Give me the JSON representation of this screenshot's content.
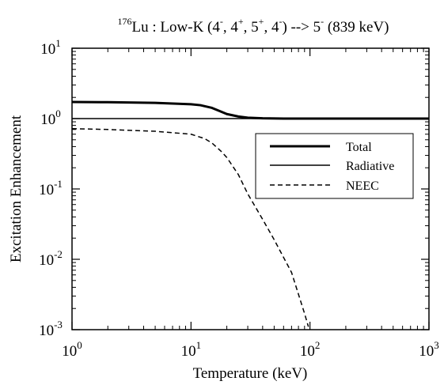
{
  "chart_data": {
    "type": "line",
    "title": {
      "sup": "176",
      "main": "Lu : Low-K (4",
      "parts": [
        {
          "sup": "-",
          "after": ", 4"
        },
        {
          "sup": "+",
          "after": ", 5"
        },
        {
          "sup": "+",
          "after": ", 4"
        },
        {
          "sup": "-",
          "after": ") --> 5"
        },
        {
          "sup": "-",
          "after": " (839 keV)"
        }
      ]
    },
    "xlabel": "Temperature (keV)",
    "ylabel": "Excitation Enhancement",
    "x_scale": "log",
    "y_scale": "log",
    "xlim": [
      1,
      1000
    ],
    "ylim": [
      0.001,
      10
    ],
    "x_ticks": [
      {
        "value": 1,
        "base": "10",
        "exp": "0"
      },
      {
        "value": 10,
        "base": "10",
        "exp": "1"
      },
      {
        "value": 100,
        "base": "10",
        "exp": "2"
      },
      {
        "value": 1000,
        "base": "10",
        "exp": "3"
      }
    ],
    "y_ticks": [
      {
        "value": 0.001,
        "base": "10",
        "exp": "-3"
      },
      {
        "value": 0.01,
        "base": "10",
        "exp": "-2"
      },
      {
        "value": 0.1,
        "base": "10",
        "exp": "-1"
      },
      {
        "value": 1,
        "base": "10",
        "exp": "0"
      },
      {
        "value": 10,
        "base": "10",
        "exp": "1"
      }
    ],
    "grid": false,
    "legend_position": "right",
    "series": [
      {
        "name": "Total",
        "style": "thick-solid",
        "color": "#000000",
        "points": [
          [
            1,
            1.72
          ],
          [
            2,
            1.71
          ],
          [
            5,
            1.67
          ],
          [
            10,
            1.6
          ],
          [
            12,
            1.55
          ],
          [
            15,
            1.42
          ],
          [
            18,
            1.25
          ],
          [
            20,
            1.16
          ],
          [
            25,
            1.07
          ],
          [
            30,
            1.03
          ],
          [
            40,
            1.01
          ],
          [
            60,
            1.0
          ],
          [
            100,
            1.0
          ],
          [
            1000,
            1.0
          ]
        ]
      },
      {
        "name": "Radiative",
        "style": "solid",
        "color": "#000000",
        "points": [
          [
            1,
            1.0
          ],
          [
            1000,
            1.0
          ]
        ]
      },
      {
        "name": "NEEC",
        "style": "dashed",
        "color": "#000000",
        "points": [
          [
            1,
            0.72
          ],
          [
            2,
            0.7
          ],
          [
            5,
            0.66
          ],
          [
            10,
            0.6
          ],
          [
            13,
            0.52
          ],
          [
            15,
            0.45
          ],
          [
            18,
            0.34
          ],
          [
            20,
            0.28
          ],
          [
            25,
            0.16
          ],
          [
            30,
            0.085
          ],
          [
            40,
            0.037
          ],
          [
            50,
            0.019
          ],
          [
            70,
            0.0065
          ],
          [
            90,
            0.0017
          ],
          [
            97,
            0.0011
          ]
        ]
      }
    ]
  }
}
